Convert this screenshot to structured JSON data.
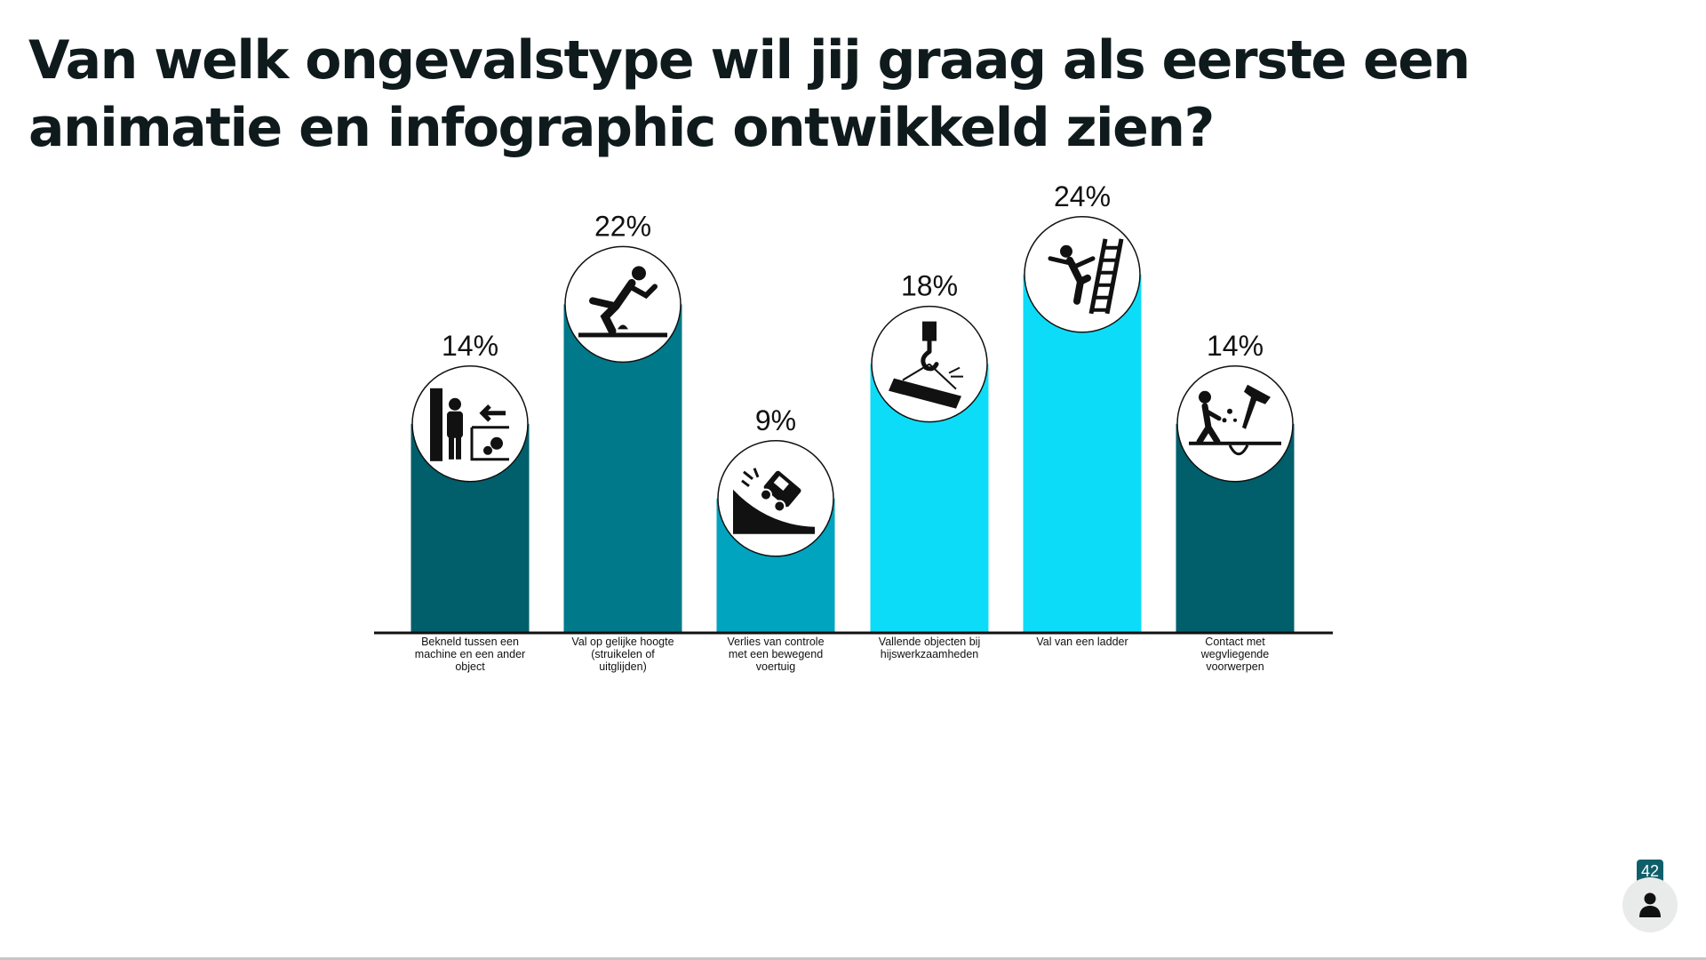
{
  "title": "Van welk ongevalstype wil jij graag als eerste een animatie en infographic ontwikkeld zien?",
  "viewer": {
    "count": "42",
    "icon": "person-icon"
  },
  "chart_data": {
    "type": "bar",
    "title": "Van welk ongevalstype wil jij graag als eerste een animatie en infographic ontwikkeld zien?",
    "xlabel": "",
    "ylabel": "",
    "ylim": [
      0,
      24
    ],
    "grid": false,
    "legend": "none",
    "categories": [
      "Bekneld tussen een machine en een ander object",
      "Val op gelijke hoogte (struikelen of uitglijden)",
      "Verlies van controle met een bewegend voertuig",
      "Vallende objecten bij hijswerkzaamheden",
      "Val van een ladder",
      "Contact met wegvliegende voorwerpen"
    ],
    "values": [
      14,
      22,
      9,
      18,
      24,
      14
    ],
    "value_labels": [
      "14%",
      "22%",
      "9%",
      "18%",
      "24%",
      "14%"
    ],
    "colors": [
      "#005f6b",
      "#007a8a",
      "#00a4bf",
      "#0ddcf8",
      "#0ddcf8",
      "#005f6b"
    ],
    "icons": [
      "caught-in-machine-icon",
      "slip-trip-icon",
      "vehicle-rollover-icon",
      "crane-load-icon",
      "ladder-fall-icon",
      "flying-debris-icon"
    ],
    "axis_color": "#111111"
  }
}
